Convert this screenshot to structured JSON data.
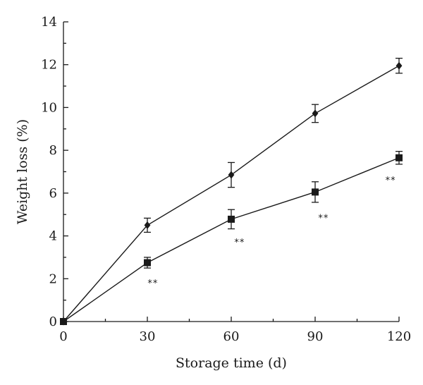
{
  "chart_data": {
    "type": "line",
    "title": "",
    "xlabel": "Storage time (d)",
    "ylabel": "Weight loss (%)",
    "xlim": [
      0,
      120
    ],
    "ylim": [
      0,
      14
    ],
    "x_ticks": [
      "0",
      "30",
      "60",
      "90",
      "120"
    ],
    "y_ticks": [
      "0",
      "2",
      "4",
      "6",
      "8",
      "10",
      "12",
      "14"
    ],
    "grid": false,
    "legend": "none",
    "x": [
      0,
      30,
      60,
      90,
      120
    ],
    "series": [
      {
        "marker": "diamond",
        "values": [
          0,
          4.5,
          6.85,
          9.72,
          11.95
        ],
        "errors": [
          0,
          0.33,
          0.58,
          0.42,
          0.35
        ]
      },
      {
        "marker": "square",
        "values": [
          0,
          2.75,
          4.78,
          6.05,
          7.65
        ],
        "errors": [
          0,
          0.25,
          0.45,
          0.48,
          0.3
        ]
      }
    ],
    "annotations": [
      {
        "text": "**",
        "x": 32,
        "y": 1.65
      },
      {
        "text": "**",
        "x": 63,
        "y": 3.55
      },
      {
        "text": "**",
        "x": 93,
        "y": 4.7
      },
      {
        "text": "**",
        "x": 117,
        "y": 6.45
      }
    ],
    "colors": {
      "ink": "#1a1a1a",
      "background": "#ffffff"
    }
  }
}
